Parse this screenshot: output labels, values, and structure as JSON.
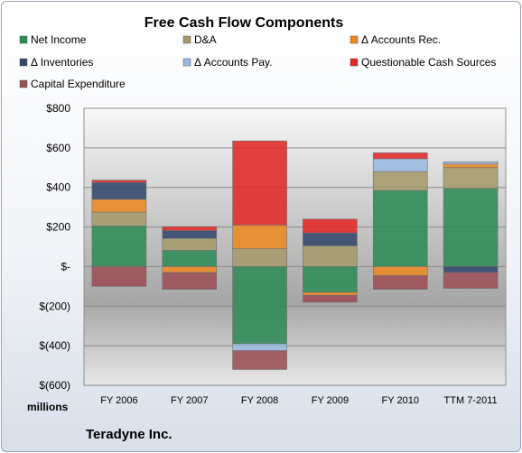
{
  "chart_data": {
    "type": "bar",
    "stacked": true,
    "title": "Free Cash Flow Components",
    "unit_label": "millions",
    "footer": "Teradyne Inc.",
    "categories": [
      "FY 2006",
      "FY 2007",
      "FY 2008",
      "FY 2009",
      "FY 2010",
      "TTM 7-2011"
    ],
    "ylim": [
      -600,
      800
    ],
    "yticks": [
      -600,
      -400,
      -200,
      0,
      200,
      400,
      600,
      800
    ],
    "ytick_labels": [
      "$(600)",
      "$(400)",
      "$(200)",
      "$-",
      "$200",
      "$400",
      "$600",
      "$800"
    ],
    "grid": true,
    "legend_position": "top",
    "series": [
      {
        "name": "Net Income",
        "color": "#2e8b57",
        "values": [
          205,
          82,
          -390,
          -130,
          385,
          395
        ]
      },
      {
        "name": "D&A",
        "color": "#a59b6c",
        "values": [
          70,
          60,
          90,
          105,
          95,
          105
        ]
      },
      {
        "name": "Δ Accounts Rec.",
        "color": "#ec8a22",
        "values": [
          65,
          -30,
          120,
          -15,
          -45,
          18
        ]
      },
      {
        "name": "Δ Inventories",
        "color": "#31476b",
        "values": [
          85,
          40,
          0,
          65,
          0,
          -30
        ]
      },
      {
        "name": "Δ Accounts Pay.",
        "color": "#9ab9e0",
        "values": [
          0,
          0,
          -35,
          0,
          65,
          12
        ]
      },
      {
        "name": "Questionable Cash Sources",
        "color": "#e32828",
        "values": [
          12,
          20,
          425,
          70,
          30,
          0
        ]
      },
      {
        "name": "Capital Expenditure",
        "color": "#9c4f55",
        "values": [
          -100,
          -85,
          -95,
          -35,
          -70,
          -80
        ]
      }
    ]
  }
}
